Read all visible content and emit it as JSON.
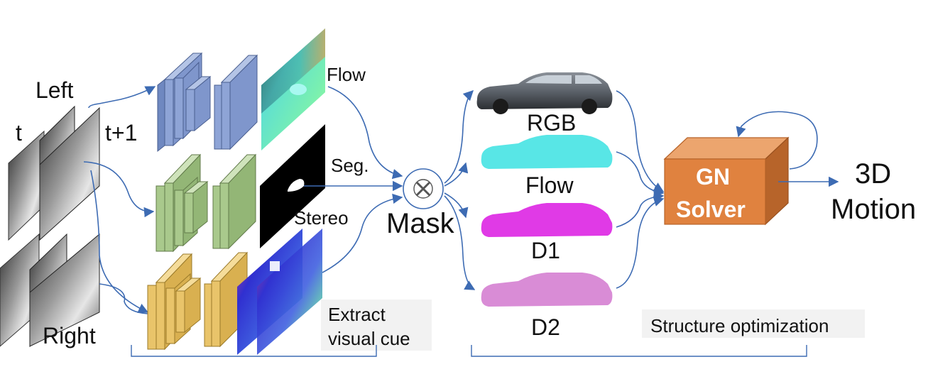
{
  "inputs": {
    "left_label": "Left",
    "right_label": "Right",
    "t_label": "t",
    "t1_label": "t+1"
  },
  "cues": {
    "flow_label": "Flow",
    "seg_label": "Seg.",
    "stereo_label": "Stereo",
    "extract_line1": "Extract",
    "extract_line2": "visual  cue"
  },
  "mask": {
    "label": "Mask"
  },
  "masked_outputs": [
    {
      "label": "RGB",
      "color": "#6e747c"
    },
    {
      "label": "Flow",
      "color": "#58e6e6"
    },
    {
      "label": "D1",
      "color": "#e03ae6"
    },
    {
      "label": "D2",
      "color": "#d98cd6"
    }
  ],
  "solver": {
    "line1": "GN",
    "line2": "Solver",
    "face_color": "#e0823f",
    "top_color": "#eca56e",
    "side_color": "#b7642a"
  },
  "output": {
    "line1": "3D",
    "line2": "Motion"
  },
  "structure_label": "Structure optimization",
  "network_colors": {
    "flow_net": "#8ea4d6",
    "seg_net": "#a9c98c",
    "stereo_net": "#e9c46a"
  },
  "icons": [
    "mask-multiply-icon",
    "car-silhouette-icon"
  ]
}
